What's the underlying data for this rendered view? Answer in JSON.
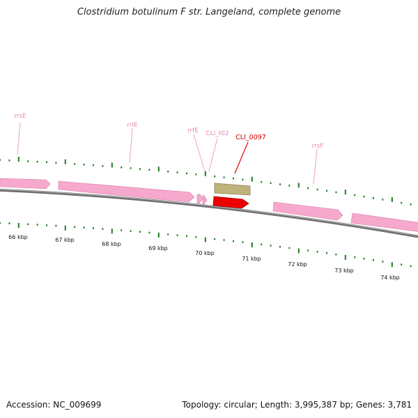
{
  "title": "Clostridium botulinum F str. Langeland, complete genome",
  "footer": {
    "accession": "Accession: NC_009699",
    "summary": "Topology: circular; Length: 3,995,387 bp; Genes: 3,781"
  },
  "colors": {
    "rrna_feature": "#f7a8cd",
    "rrna_label": "#e58ab5",
    "highlight_gene": "#ee0000",
    "highlight_label": "#cc0000",
    "trna_feature": "#bfb27a",
    "tick": "#1f7a1f",
    "backbone": "#7a7a7a"
  },
  "kbp_ticks": [
    "66 kbp",
    "67 kbp",
    "68 kbp",
    "69 kbp",
    "70 kbp",
    "71 kbp",
    "72 kbp",
    "73 kbp",
    "74 kbp"
  ],
  "features": [
    {
      "label": "rrsE",
      "type": "rRNA"
    },
    {
      "label": "rrlE",
      "type": "rRNA"
    },
    {
      "label": "rrfE",
      "type": "rRNA"
    },
    {
      "label": "CLI_t02",
      "type": "tRNA"
    },
    {
      "label": "CLI_0097",
      "type": "gene"
    },
    {
      "label": "rrsF",
      "type": "rRNA"
    }
  ]
}
